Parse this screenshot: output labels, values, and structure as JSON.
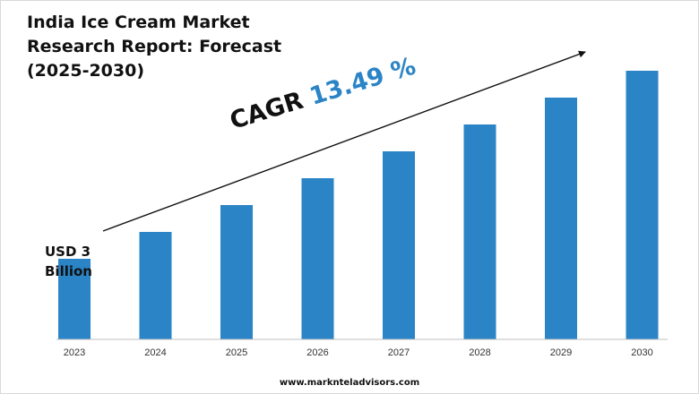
{
  "chart_data": {
    "type": "bar",
    "title": "India Ice Cream Market Research Report: Forecast (2025-2030)",
    "title_lines": [
      "India Ice Cream Market",
      "Research Report: Forecast",
      "(2025-2030)"
    ],
    "categories": [
      "2023",
      "2024",
      "2025",
      "2026",
      "2027",
      "2028",
      "2029",
      "2030"
    ],
    "values": [
      3.0,
      4.0,
      5.0,
      6.0,
      7.0,
      8.0,
      9.0,
      10.0
    ],
    "base_label_lines": [
      "USD 3",
      "Billion"
    ],
    "cagr_label": "CAGR",
    "cagr_value": "13.49 %",
    "xlabel": "",
    "ylabel": "",
    "ylim": [
      0,
      10.3
    ],
    "grid": false,
    "bar_color": "#2a84c6"
  },
  "footer": {
    "url": "www.marknteladvisors.com"
  },
  "colors": {
    "accent": "#2a84c6",
    "text": "#111111"
  }
}
